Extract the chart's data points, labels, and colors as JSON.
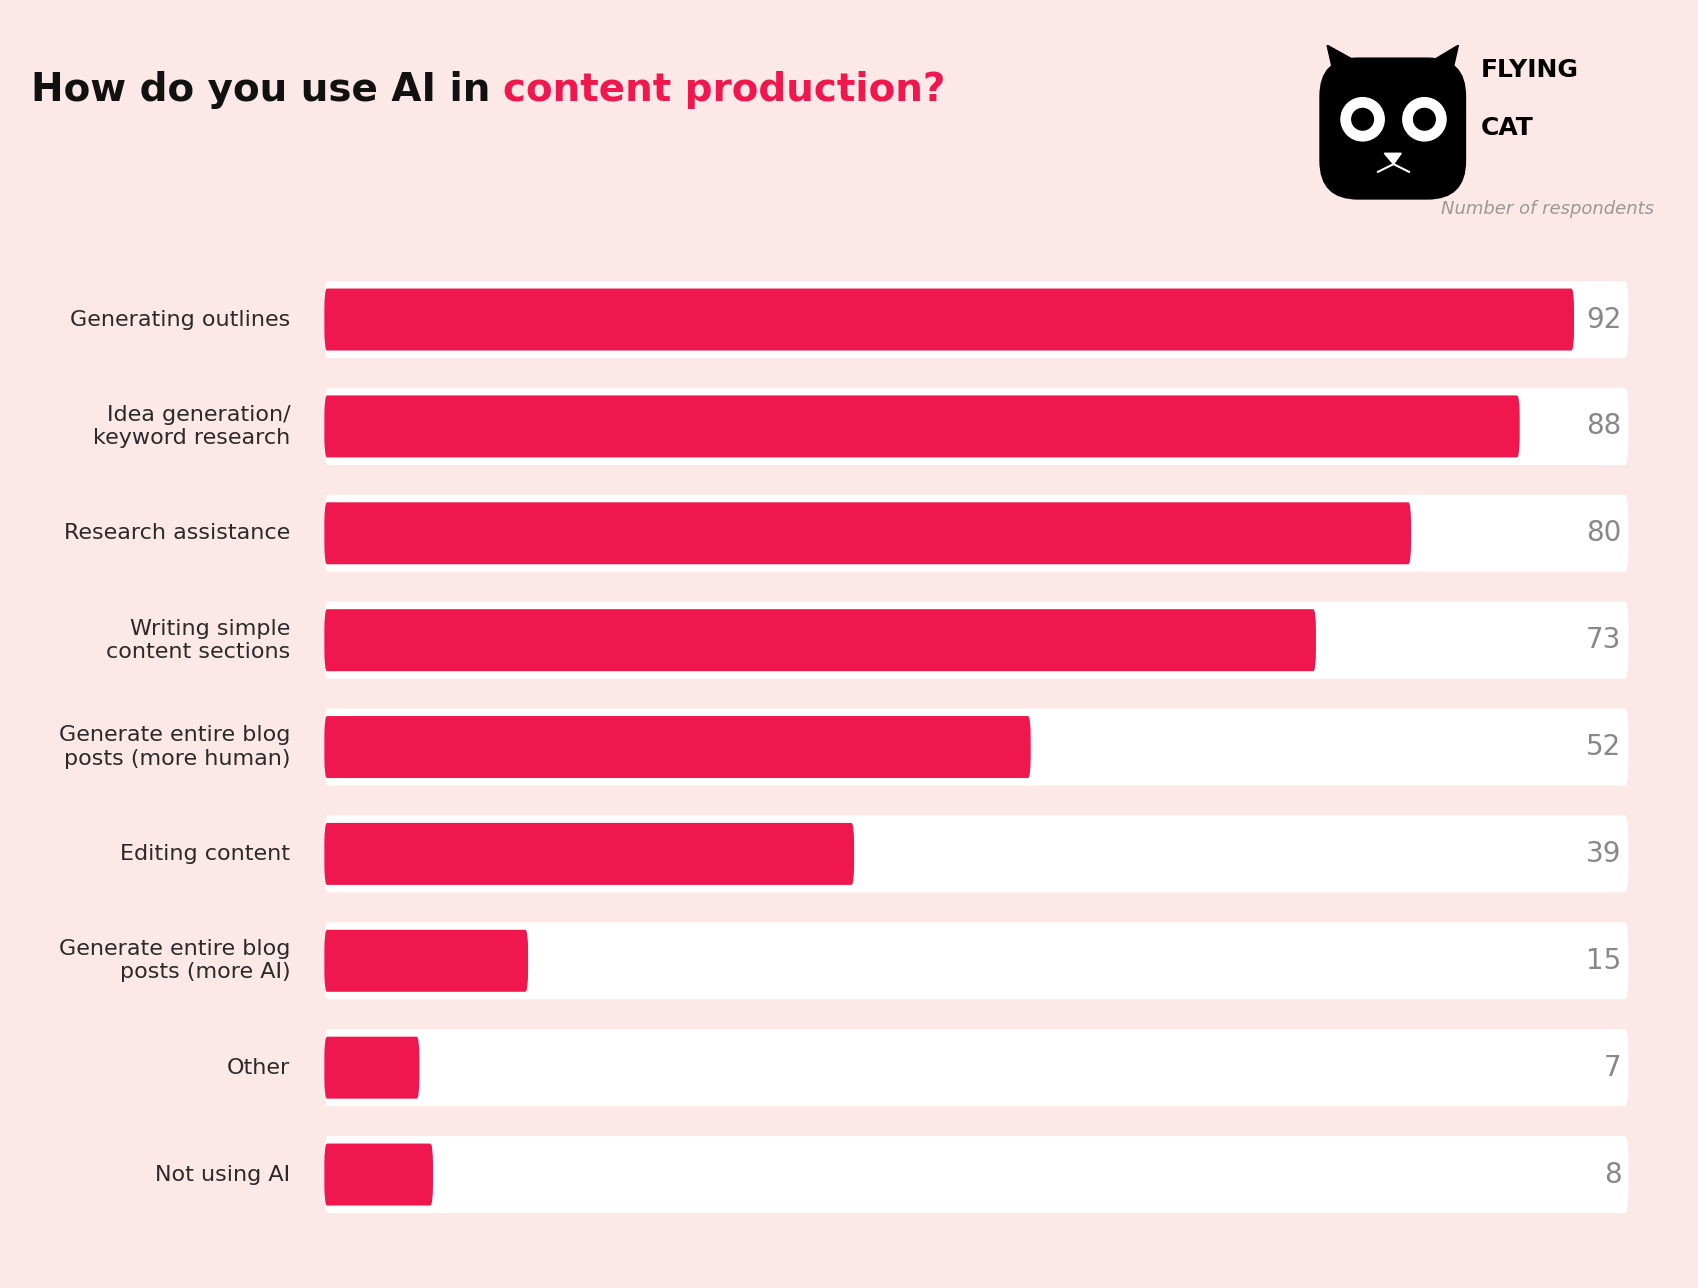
{
  "title_black": "How do you use AI in ",
  "title_red": "content production?",
  "title_fontsize": 28,
  "background_color": "#fce8e6",
  "bar_bg_color": "#ffffff",
  "bar_color": "#f0174f",
  "label_color": "#2a2a2a",
  "value_color": "#888888",
  "categories": [
    "Generating outlines",
    "Idea generation/\nkeyword research",
    "Research assistance",
    "Writing simple\ncontent sections",
    "Generate entire blog\nposts (more human)",
    "Editing content",
    "Generate entire blog\nposts (more AI)",
    "Other",
    "Not using AI"
  ],
  "values": [
    92,
    88,
    80,
    73,
    52,
    39,
    15,
    7,
    8
  ],
  "max_value": 92,
  "subtitle": "Number of respondents",
  "subtitle_color": "#999999",
  "subtitle_fontsize": 13,
  "label_fontsize": 16,
  "value_fontsize": 20
}
